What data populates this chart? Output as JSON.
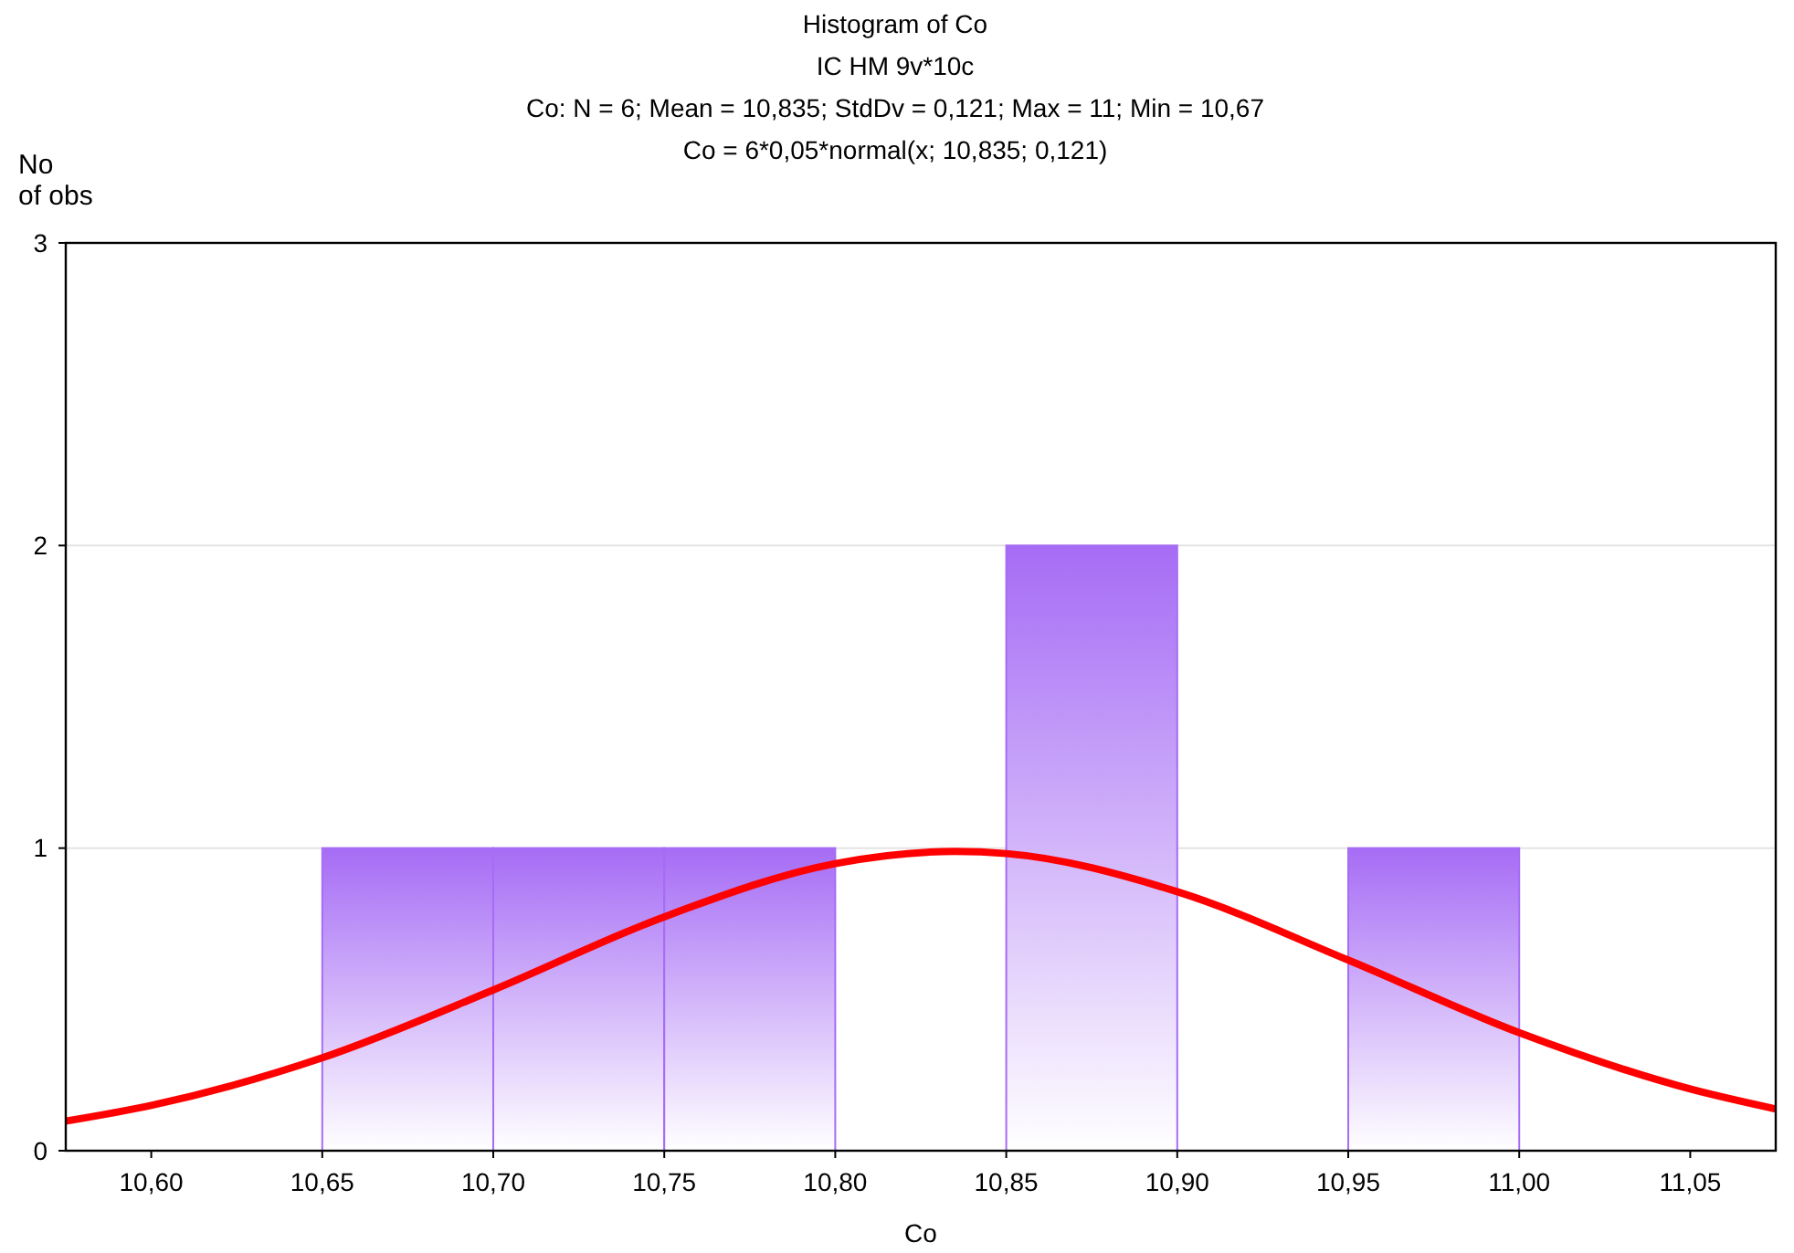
{
  "chart_data": {
    "type": "histogram",
    "title": "Histogram of Co",
    "subtitle": "IC HM 9v*10c",
    "annotations": [
      "Co:   N = 6; Mean = 10,835; StdDv = 0,121; Max = 11; Min = 10,67",
      "Co = 6*0,05*normal(x; 10,835; 0,121)"
    ],
    "xlabel": "Co",
    "ylabel": "No of obs",
    "bins": [
      10.65,
      10.7,
      10.75,
      10.8,
      10.85,
      10.9,
      10.95,
      11.0
    ],
    "values": [
      1,
      1,
      1,
      0,
      2,
      0,
      1
    ],
    "color": "#a66cf5",
    "series": [
      {
        "type": "line",
        "color": "#ff0000",
        "x": [
          10.575,
          10.6,
          10.65,
          10.7,
          10.75,
          10.8,
          10.835,
          10.85,
          10.9,
          10.95,
          11.0,
          11.05,
          11.075
        ],
        "values": [
          0.098,
          0.15,
          0.307,
          0.531,
          0.773,
          0.949,
          0.989,
          0.982,
          0.856,
          0.63,
          0.39,
          0.204,
          0.138
        ]
      }
    ],
    "xlim": [
      10.575,
      11.075
    ],
    "xticks": [
      {
        "value": 10.6,
        "label": "10,60"
      },
      {
        "value": 10.65,
        "label": "10,65"
      },
      {
        "value": 10.7,
        "label": "10,70"
      },
      {
        "value": 10.75,
        "label": "10,75"
      },
      {
        "value": 10.8,
        "label": "10,80"
      },
      {
        "value": 10.85,
        "label": "10,85"
      },
      {
        "value": 10.9,
        "label": "10,90"
      },
      {
        "value": 10.95,
        "label": "10,95"
      },
      {
        "value": 11.0,
        "label": "11,00"
      },
      {
        "value": 11.05,
        "label": "11,05"
      }
    ],
    "ylim": [
      0,
      3
    ],
    "yticks": [
      0,
      1,
      2,
      3
    ],
    "grid": "y"
  }
}
